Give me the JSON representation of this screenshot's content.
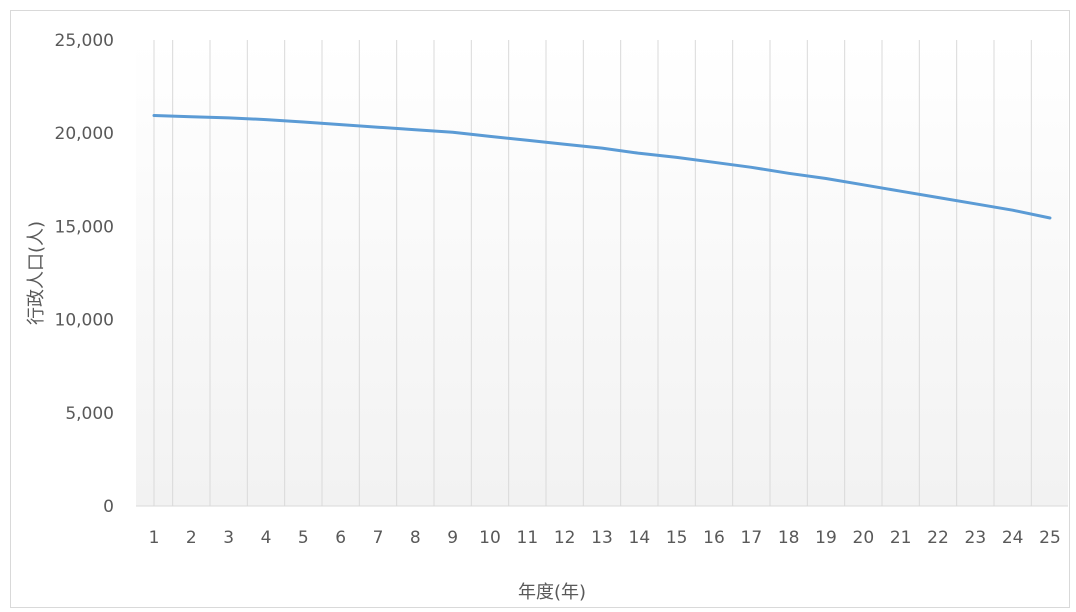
{
  "chart_data": {
    "type": "line",
    "title": "",
    "xlabel": "年度(年)",
    "ylabel": "行政人口(人)",
    "x": [
      1,
      2,
      3,
      4,
      5,
      6,
      7,
      8,
      9,
      10,
      11,
      12,
      13,
      14,
      15,
      16,
      17,
      18,
      19,
      20,
      21,
      22,
      23,
      24,
      25
    ],
    "series": [
      {
        "values": [
          20950,
          20880,
          20820,
          20730,
          20600,
          20460,
          20320,
          20190,
          20050,
          19830,
          19620,
          19410,
          19200,
          18920,
          18700,
          18440,
          18170,
          17850,
          17570,
          17230,
          16890,
          16550,
          16210,
          15870,
          15450
        ]
      }
    ],
    "ylim": [
      0,
      25000
    ],
    "yticks": [
      "0",
      "5,000",
      "10,000",
      "15,000",
      "20,000",
      "25,000"
    ],
    "ytick_values": [
      0,
      5000,
      10000,
      15000,
      20000,
      25000
    ],
    "grid": "vertical",
    "legend": "none",
    "colors": {
      "line": "#5b9bd5",
      "grid": "#d9d9d9",
      "text": "#595959",
      "plot_top": "#ffffff",
      "plot_bottom": "#f2f2f2"
    }
  }
}
